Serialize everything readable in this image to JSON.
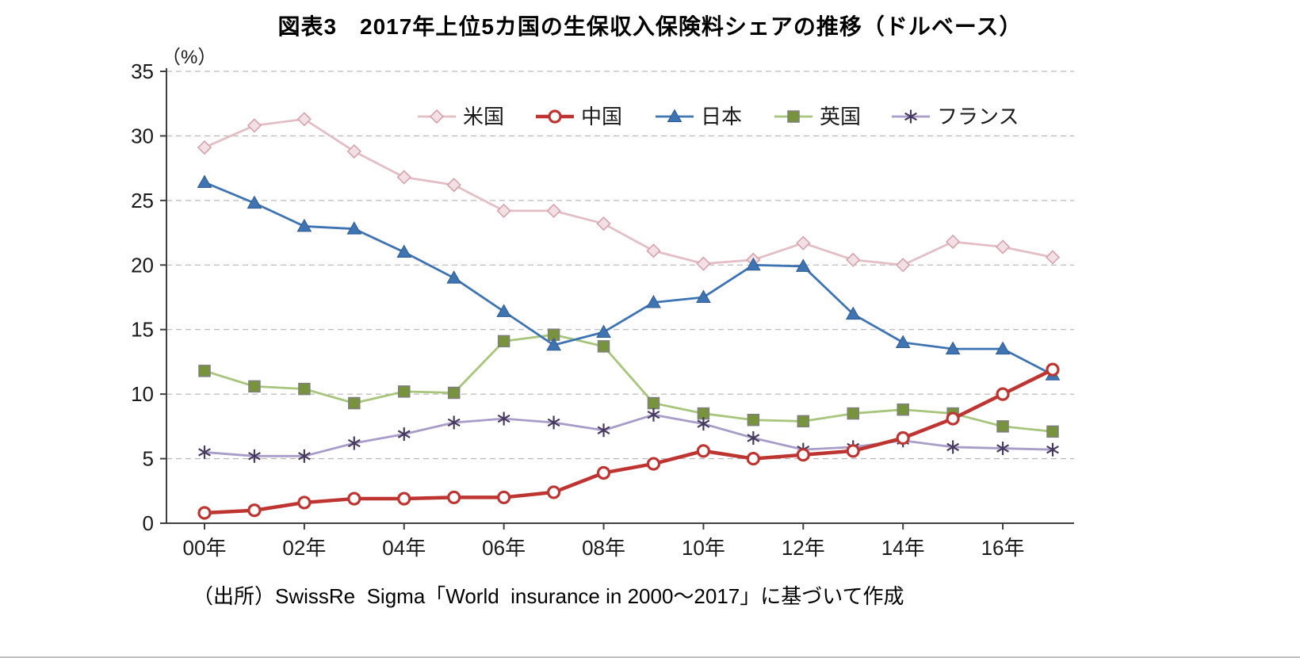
{
  "chart_data": {
    "type": "line",
    "title": "図表3　2017年上位5カ国の生保収入保険料シェアの推移（ドルベース）",
    "unit_label": "（%）",
    "source": "（出所）SwissRe  Sigma「World  insurance in 2000～2017」に基づいて作成",
    "x": [
      "00年",
      "01年",
      "02年",
      "03年",
      "04年",
      "05年",
      "06年",
      "07年",
      "08年",
      "09年",
      "10年",
      "11年",
      "12年",
      "13年",
      "14年",
      "15年",
      "16年",
      "17年"
    ],
    "x_tick_labels_shown": [
      "00年",
      "02年",
      "04年",
      "06年",
      "08年",
      "10年",
      "12年",
      "14年",
      "16年"
    ],
    "ylim": [
      0,
      35
    ],
    "ytick_step": 5,
    "yticks": [
      0,
      5,
      10,
      15,
      20,
      25,
      30,
      35
    ],
    "grid": "dashed-horizontal",
    "legend_position": "top-inside",
    "series": [
      {
        "name": "米国",
        "marker": "diamond",
        "color": "#e3bfc5",
        "marker_fill": "#f3e0e4",
        "marker_stroke": "#d5a3ad",
        "values": [
          29.1,
          30.8,
          31.3,
          28.8,
          26.8,
          26.2,
          24.2,
          24.2,
          23.2,
          21.1,
          20.1,
          20.4,
          21.7,
          20.4,
          20.0,
          21.8,
          21.4,
          20.6
        ]
      },
      {
        "name": "中国",
        "marker": "circle",
        "color": "#bd3430",
        "marker_fill": "#ffffff",
        "marker_stroke": "#bd3430",
        "values": [
          0.8,
          1.0,
          1.6,
          1.9,
          1.9,
          2.0,
          2.0,
          2.4,
          3.9,
          4.6,
          5.6,
          5.0,
          5.3,
          5.6,
          6.6,
          8.1,
          10.0,
          11.9
        ]
      },
      {
        "name": "日本",
        "marker": "triangle",
        "color": "#3f74b3",
        "marker_fill": "#3f74b3",
        "marker_stroke": "#2f5a8f",
        "values": [
          26.4,
          24.8,
          23.0,
          22.8,
          21.0,
          19.0,
          16.4,
          13.8,
          14.8,
          17.1,
          17.5,
          20.0,
          19.9,
          16.2,
          14.0,
          13.5,
          13.5,
          11.5
        ]
      },
      {
        "name": "英国",
        "marker": "square",
        "color": "#a8c57c",
        "marker_fill": "#77933c",
        "marker_stroke": "#7f7f7f",
        "values": [
          11.8,
          10.6,
          10.4,
          9.3,
          10.2,
          10.1,
          14.1,
          14.6,
          13.7,
          9.3,
          8.5,
          8.0,
          7.9,
          8.5,
          8.8,
          8.5,
          7.5,
          7.1
        ]
      },
      {
        "name": "フランス",
        "marker": "asterisk",
        "color": "#a89cc8",
        "marker_fill": "none",
        "marker_stroke": "#473a5e",
        "values": [
          5.5,
          5.2,
          5.2,
          6.2,
          6.9,
          7.8,
          8.1,
          7.8,
          7.2,
          8.4,
          7.7,
          6.6,
          5.7,
          5.9,
          6.4,
          5.9,
          5.8,
          5.7
        ]
      }
    ]
  }
}
